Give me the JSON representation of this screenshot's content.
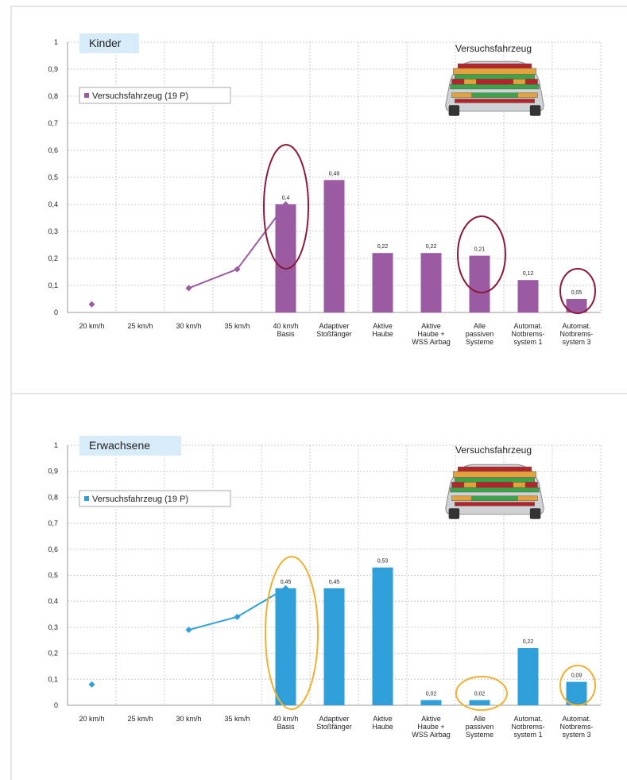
{
  "chart_data": [
    {
      "type": "bar",
      "title": "Kinder",
      "annotation": "Versuchsfahrzeug",
      "categories": [
        "20 km/h",
        "25 km/h",
        "30 km/h",
        "35 km/h",
        "40 km/h\nBasis",
        "Adaptiver\nStoßfänger",
        "Aktive\nHaube",
        "Aktive\nHaube +\nWSS Airbag",
        "Alle\npassiven\nSysteme",
        "Automat.\nNotbrems-\nsystem 1",
        "Automat.\nNotbrems-\nsystem 3"
      ],
      "series": [
        {
          "type": "line",
          "color": "#9b5ba3",
          "values": [
            0.03,
            null,
            0.09,
            0.16,
            0.4,
            null,
            null,
            null,
            null,
            null,
            null
          ]
        },
        {
          "type": "bar",
          "name": "Versuchsfahrzeug (19 P)",
          "color": "#9b5ba3",
          "values": [
            null,
            null,
            null,
            null,
            0.4,
            0.49,
            0.22,
            0.22,
            0.21,
            0.12,
            0.05
          ],
          "value_labels": [
            null,
            null,
            null,
            null,
            "0,4",
            "0,49",
            "0,22",
            "0,22",
            "0,21",
            "0,12",
            "0,05"
          ]
        }
      ],
      "ylim": [
        0,
        1
      ],
      "yticks": [
        0,
        {
          "value": 0.1,
          "label": "0,1"
        },
        {
          "value": 0.2,
          "label": "0,2"
        },
        {
          "value": 0.3,
          "label": "0,3"
        },
        {
          "value": 0.4,
          "label": "0,4"
        },
        {
          "value": 0.5,
          "label": "0,5"
        },
        {
          "value": 0.6,
          "label": "0,6"
        },
        {
          "value": 0.7,
          "label": "0,7"
        },
        {
          "value": 0.8,
          "label": "0,8"
        },
        {
          "value": 0.9,
          "label": "0,9"
        },
        1
      ],
      "grid": true
    },
    {
      "type": "bar",
      "title": "Erwachsene",
      "annotation": "Versuchsfahrzeug",
      "categories": [
        "20 km/h",
        "25 km/h",
        "30 km/h",
        "35 km/h",
        "40 km/h\nBasis",
        "Adaptiver\nStoßfänger",
        "Aktive\nHaube",
        "Aktive\nHaube +\nWSS Airbag",
        "Alle\npassiven\nSysteme",
        "Automat.\nNotbrems-\nsystem 1",
        "Automat.\nNotbrems-\nsystem 3"
      ],
      "series": [
        {
          "type": "line",
          "color": "#2e9fd8",
          "values": [
            0.08,
            null,
            0.29,
            0.34,
            0.45,
            null,
            null,
            null,
            null,
            null,
            null
          ]
        },
        {
          "type": "bar",
          "name": "Versuchsfahrzeug (19 P)",
          "color": "#2e9fd8",
          "values": [
            null,
            null,
            null,
            null,
            0.45,
            0.45,
            0.53,
            0.02,
            0.02,
            0.22,
            0.09
          ],
          "value_labels": [
            null,
            null,
            null,
            null,
            "0,45",
            "0,45",
            "0,53",
            "0,02",
            "0,02",
            "0,22",
            "0,09"
          ]
        }
      ],
      "ylim": [
        0,
        1
      ],
      "yticks": [
        0,
        {
          "value": 0.1,
          "label": "0,1"
        },
        {
          "value": 0.2,
          "label": "0,2"
        },
        {
          "value": 0.3,
          "label": "0,3"
        },
        {
          "value": 0.4,
          "label": "0,4"
        },
        {
          "value": 0.5,
          "label": "0,5"
        },
        {
          "value": 0.6,
          "label": "0,6"
        },
        {
          "value": 0.7,
          "label": "0,7"
        },
        {
          "value": 0.8,
          "label": "0,8"
        },
        {
          "value": 0.9,
          "label": "0,9"
        },
        1
      ],
      "grid": true
    }
  ]
}
